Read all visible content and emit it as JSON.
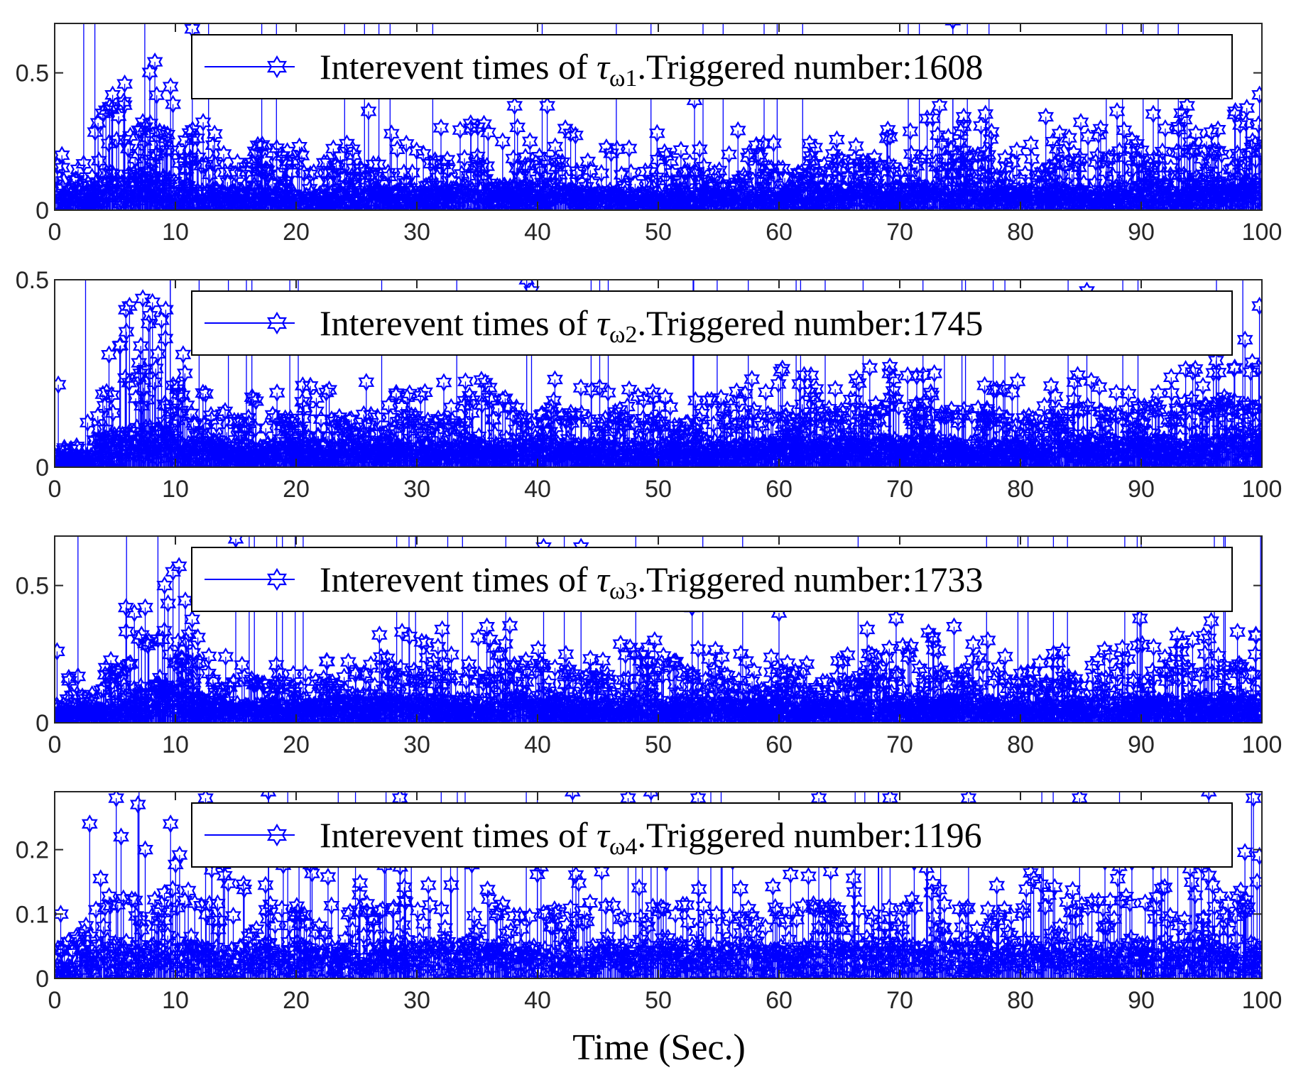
{
  "colors": {
    "series": "#0000ff",
    "axis": "#262626",
    "legend_border": "#000000",
    "background": "#ffffff"
  },
  "marker": "hexagram-star",
  "xlabel": "Time (Sec.)",
  "chart_data": [
    {
      "type": "stem",
      "series_name": "Interevent times of τω1",
      "legend": {
        "prefix": "Interevent times of ",
        "symbol": "τ",
        "sub": "ω1",
        "suffix": ".Triggered number:1608",
        "location": "top-right"
      },
      "triggered_number": 1608,
      "xlim": [
        0,
        100
      ],
      "ylim": [
        0,
        0.68
      ],
      "xticks": [
        0,
        10,
        20,
        30,
        40,
        50,
        60,
        70,
        80,
        90,
        100
      ],
      "yticks": [
        0,
        0.5
      ],
      "ytick_labels": [
        "0",
        "0.5"
      ],
      "profile": [
        [
          0,
          0.15
        ],
        [
          5,
          0.4
        ],
        [
          8,
          0.5
        ],
        [
          12,
          0.28
        ],
        [
          20,
          0.22
        ],
        [
          30,
          0.28
        ],
        [
          40,
          0.34
        ],
        [
          45,
          0.22
        ],
        [
          55,
          0.22
        ],
        [
          65,
          0.26
        ],
        [
          75,
          0.34
        ],
        [
          80,
          0.24
        ],
        [
          90,
          0.32
        ],
        [
          100,
          0.38
        ]
      ],
      "highlights": [
        [
          0.6,
          0.2
        ],
        [
          4.8,
          0.42
        ],
        [
          5.8,
          0.46
        ],
        [
          7.3,
          0.32
        ],
        [
          8.3,
          0.54
        ],
        [
          9.6,
          0.45
        ],
        [
          11.4,
          0.66
        ],
        [
          12.3,
          0.32
        ],
        [
          26,
          0.36
        ],
        [
          32,
          0.3
        ],
        [
          38.1,
          0.38
        ],
        [
          40.8,
          0.38
        ],
        [
          49.9,
          0.28
        ],
        [
          53,
          0.4
        ],
        [
          56.6,
          0.29
        ],
        [
          73.3,
          0.38
        ],
        [
          74.4,
          0.69
        ],
        [
          75.3,
          0.34
        ],
        [
          77.1,
          0.35
        ],
        [
          82.1,
          0.34
        ],
        [
          85,
          0.32
        ],
        [
          88,
          0.36
        ],
        [
          91,
          0.35
        ],
        [
          93.8,
          0.38
        ],
        [
          97.8,
          0.36
        ],
        [
          99.8,
          0.42
        ]
      ]
    },
    {
      "type": "stem",
      "series_name": "Interevent times of τω2",
      "legend": {
        "prefix": "Interevent times of ",
        "symbol": "τ",
        "sub": "ω2",
        "suffix": ".Triggered number:1745",
        "location": "top-right"
      },
      "triggered_number": 1745,
      "xlim": [
        0,
        100
      ],
      "ylim": [
        0,
        0.5
      ],
      "xticks": [
        0,
        10,
        20,
        30,
        40,
        50,
        60,
        70,
        80,
        90,
        100
      ],
      "yticks": [
        0,
        0.5
      ],
      "ytick_labels": [
        "0",
        "0.5"
      ],
      "profile": [
        [
          0,
          0.06
        ],
        [
          3,
          0.12
        ],
        [
          6,
          0.38
        ],
        [
          9,
          0.4
        ],
        [
          12,
          0.2
        ],
        [
          20,
          0.22
        ],
        [
          30,
          0.22
        ],
        [
          40,
          0.24
        ],
        [
          47,
          0.2
        ],
        [
          55,
          0.2
        ],
        [
          60,
          0.26
        ],
        [
          70,
          0.26
        ],
        [
          80,
          0.22
        ],
        [
          90,
          0.26
        ],
        [
          100,
          0.28
        ]
      ],
      "highlights": [
        [
          0.3,
          0.22
        ],
        [
          4.3,
          0.2
        ],
        [
          4.5,
          0.3
        ],
        [
          5.9,
          0.42
        ],
        [
          6.2,
          0.43
        ],
        [
          7.3,
          0.45
        ],
        [
          8.1,
          0.44
        ],
        [
          9.2,
          0.42
        ],
        [
          39.1,
          0.5
        ],
        [
          39.5,
          0.47
        ],
        [
          73.7,
          0.32
        ],
        [
          85.5,
          0.47
        ],
        [
          98.6,
          0.34
        ],
        [
          99.2,
          0.28
        ],
        [
          99.8,
          0.43
        ]
      ]
    },
    {
      "type": "stem",
      "series_name": "Interevent times of τω3",
      "legend": {
        "prefix": "Interevent times of ",
        "symbol": "τ",
        "sub": "ω3",
        "suffix": ".Triggered number:1733",
        "location": "top-right"
      },
      "triggered_number": 1733,
      "xlim": [
        0,
        100
      ],
      "ylim": [
        0,
        0.68
      ],
      "xticks": [
        0,
        10,
        20,
        30,
        40,
        50,
        60,
        70,
        80,
        90,
        100
      ],
      "yticks": [
        0,
        0.5
      ],
      "ytick_labels": [
        "0",
        "0.5"
      ],
      "profile": [
        [
          0,
          0.14
        ],
        [
          4,
          0.2
        ],
        [
          7,
          0.45
        ],
        [
          10,
          0.55
        ],
        [
          13,
          0.24
        ],
        [
          20,
          0.22
        ],
        [
          28,
          0.32
        ],
        [
          35,
          0.32
        ],
        [
          40,
          0.36
        ],
        [
          45,
          0.26
        ],
        [
          50,
          0.3
        ],
        [
          57,
          0.26
        ],
        [
          60,
          0.22
        ],
        [
          66,
          0.24
        ],
        [
          72,
          0.32
        ],
        [
          77,
          0.28
        ],
        [
          80,
          0.22
        ],
        [
          90,
          0.3
        ],
        [
          100,
          0.32
        ]
      ],
      "highlights": [
        [
          0.2,
          0.26
        ],
        [
          5.9,
          0.42
        ],
        [
          6.6,
          0.4
        ],
        [
          7.5,
          0.42
        ],
        [
          9.1,
          0.5
        ],
        [
          9.8,
          0.55
        ],
        [
          10.3,
          0.57
        ],
        [
          15,
          0.67
        ],
        [
          26.9,
          0.32
        ],
        [
          32.1,
          0.34
        ],
        [
          35.8,
          0.35
        ],
        [
          40.5,
          0.64
        ],
        [
          43.6,
          0.64
        ],
        [
          49.7,
          0.3
        ],
        [
          52.8,
          0.42
        ],
        [
          60,
          0.4
        ],
        [
          67.3,
          0.34
        ],
        [
          69.7,
          0.38
        ],
        [
          74.5,
          0.35
        ],
        [
          77.3,
          0.3
        ],
        [
          89.9,
          0.38
        ],
        [
          95.8,
          0.37
        ],
        [
          99.5,
          0.32
        ]
      ]
    },
    {
      "type": "stem",
      "series_name": "Interevent times of τω4",
      "legend": {
        "prefix": "Interevent times of ",
        "symbol": "τ",
        "sub": "ω4",
        "suffix": ".Triggered number:1196",
        "location": "top-right"
      },
      "triggered_number": 1196,
      "xlim": [
        0,
        100
      ],
      "ylim": [
        0,
        0.29
      ],
      "xticks": [
        0,
        10,
        20,
        30,
        40,
        50,
        60,
        70,
        80,
        90,
        100
      ],
      "yticks": [
        0,
        0.1,
        0.2
      ],
      "ytick_labels": [
        "0",
        "0.1",
        "0.2"
      ],
      "profile": [
        [
          0,
          0.06
        ],
        [
          3,
          0.14
        ],
        [
          5,
          0.2
        ],
        [
          8,
          0.2
        ],
        [
          12,
          0.18
        ],
        [
          20,
          0.18
        ],
        [
          30,
          0.19
        ],
        [
          40,
          0.17
        ],
        [
          50,
          0.19
        ],
        [
          60,
          0.18
        ],
        [
          70,
          0.19
        ],
        [
          80,
          0.18
        ],
        [
          90,
          0.19
        ],
        [
          100,
          0.2
        ]
      ],
      "highlights": [
        [
          0.5,
          0.1
        ],
        [
          2.9,
          0.24
        ],
        [
          5.1,
          0.28
        ],
        [
          5.5,
          0.22
        ],
        [
          6.9,
          0.27
        ],
        [
          7.5,
          0.2
        ],
        [
          9.6,
          0.24
        ],
        [
          12.5,
          0.28
        ],
        [
          17.7,
          0.29
        ],
        [
          28.6,
          0.28
        ],
        [
          42.9,
          0.29
        ],
        [
          47.5,
          0.28
        ],
        [
          49.4,
          0.29
        ],
        [
          53.3,
          0.28
        ],
        [
          63.3,
          0.28
        ],
        [
          69.2,
          0.28
        ],
        [
          75.7,
          0.28
        ],
        [
          84.9,
          0.28
        ],
        [
          95.6,
          0.29
        ],
        [
          99.3,
          0.28
        ],
        [
          99.6,
          0.15
        ],
        [
          99.8,
          0.19
        ]
      ]
    }
  ]
}
